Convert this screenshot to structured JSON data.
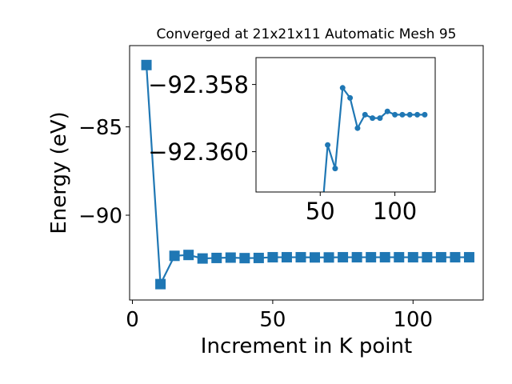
{
  "chart_data": [
    {
      "type": "line",
      "role": "main",
      "title": "Converged at 21x21x11 Automatic Mesh 95",
      "xlabel": "Increment in K point",
      "ylabel": "Energy (eV)",
      "xlim": [
        -1,
        125
      ],
      "ylim": [
        -94.8,
        -80.4
      ],
      "xticks": [
        0,
        50,
        100
      ],
      "yticks": [
        -85,
        -90
      ],
      "xtick_labels": [
        "0",
        "50",
        "100"
      ],
      "ytick_labels": [
        "−85",
        "−90"
      ],
      "marker": "square",
      "color": "#1f77b4",
      "series": [
        {
          "x": [
            5,
            10,
            15,
            20,
            25,
            30,
            35,
            40,
            45,
            50,
            55,
            60,
            65,
            70,
            75,
            80,
            85,
            90,
            95,
            100,
            105,
            110,
            115,
            120
          ],
          "y": [
            -81.5,
            -93.9,
            -92.3,
            -92.25,
            -92.45,
            -92.42,
            -92.4,
            -92.43,
            -92.42,
            -92.38,
            -92.38,
            -92.38,
            -92.39,
            -92.39,
            -92.38,
            -92.38,
            -92.38,
            -92.38,
            -92.38,
            -92.38,
            -92.38,
            -92.38,
            -92.38,
            -92.38
          ]
        }
      ]
    },
    {
      "type": "line",
      "role": "inset",
      "xlim": [
        7,
        127
      ],
      "ylim": [
        -92.3612,
        -92.3572
      ],
      "xticks": [
        50,
        100
      ],
      "yticks": [
        -92.36,
        -92.358
      ],
      "xtick_labels": [
        "50",
        "100"
      ],
      "ytick_labels": [
        "−92.360",
        "−92.358"
      ],
      "marker": "circle",
      "color": "#1f77b4",
      "series": [
        {
          "x": [
            50,
            55,
            60,
            65,
            70,
            75,
            80,
            85,
            90,
            95,
            100,
            105,
            110,
            115,
            120
          ],
          "y": [
            -92.3625,
            -92.3598,
            -92.3605,
            -92.3581,
            -92.3584,
            -92.3593,
            -92.3589,
            -92.359,
            -92.359,
            -92.3588,
            -92.3589,
            -92.3589,
            -92.3589,
            -92.3589,
            -92.3589
          ]
        }
      ]
    }
  ]
}
